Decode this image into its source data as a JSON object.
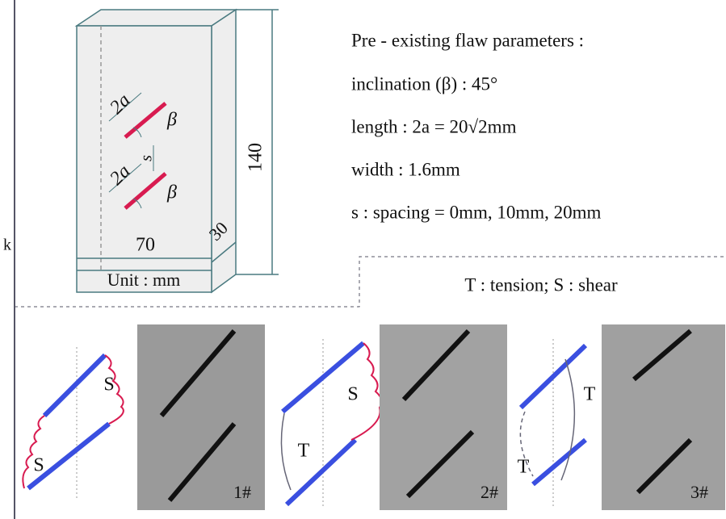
{
  "edge_text": "k",
  "specimen": {
    "flaw_top": {
      "length": "2a",
      "angle": "β"
    },
    "spacing": "s",
    "flaw_bottom": {
      "length": "2a",
      "angle": "β"
    },
    "height": "140",
    "depth": "30",
    "width": "70",
    "unit": "Unit : mm"
  },
  "parameters": {
    "title": "Pre - existing flaw parameters :",
    "lines": [
      "inclination (β) : 45°",
      "length : 2a = 20√2mm",
      "width : 1.6mm",
      "s : spacing = 0mm, 10mm, 20mm"
    ]
  },
  "legend": "T : tension;  S : shear",
  "panels": [
    {
      "labels": [
        "S",
        "S"
      ],
      "photo_label": "1#"
    },
    {
      "labels": [
        "S",
        "T"
      ],
      "photo_label": "2#"
    },
    {
      "labels": [
        "T",
        "T"
      ],
      "photo_label": "3#"
    }
  ]
}
